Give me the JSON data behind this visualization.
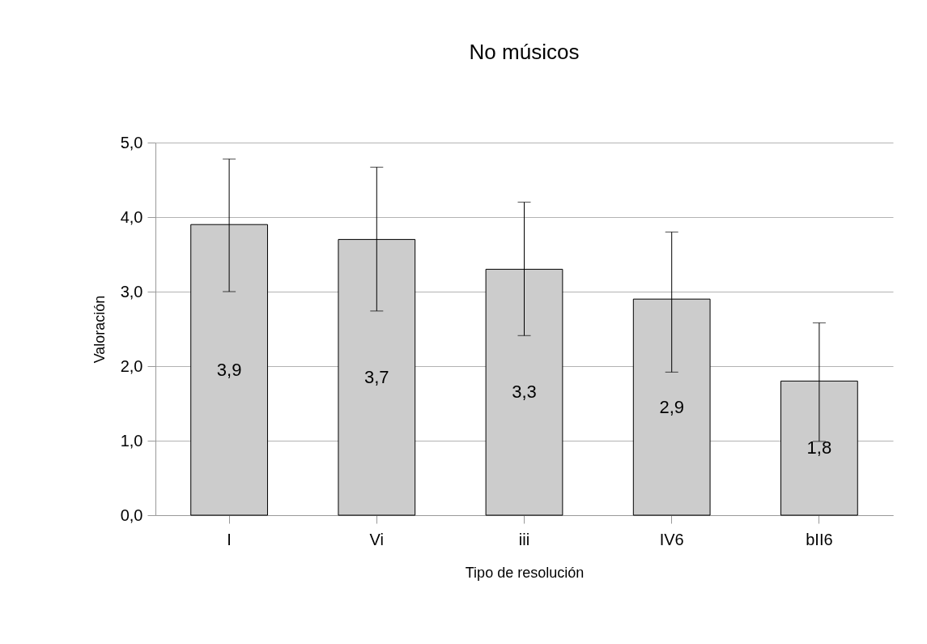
{
  "chart_data": {
    "type": "bar",
    "title": "No músicos",
    "xlabel": "Tipo de resolución",
    "ylabel": "Valoración",
    "categories": [
      "I",
      "Vi",
      "iii",
      "IV6",
      "bII6"
    ],
    "values": [
      3.9,
      3.7,
      3.3,
      2.9,
      1.8
    ],
    "value_labels": [
      "3,9",
      "3,7",
      "3,3",
      "2,9",
      "1,8"
    ],
    "errors": [
      [
        3.0,
        4.78
      ],
      [
        2.74,
        4.67
      ],
      [
        2.41,
        4.2
      ],
      [
        1.92,
        3.8
      ],
      [
        0.99,
        2.58
      ]
    ],
    "color": "#cccccc",
    "ylim": [
      0,
      5
    ],
    "yticks": [
      {
        "value": 0,
        "label": "0,0"
      },
      {
        "value": 1,
        "label": "1,0"
      },
      {
        "value": 2,
        "label": "2,0"
      },
      {
        "value": 3,
        "label": "3,0"
      },
      {
        "value": 4,
        "label": "4,0"
      },
      {
        "value": 5,
        "label": "5,0"
      }
    ],
    "grid": "y"
  }
}
